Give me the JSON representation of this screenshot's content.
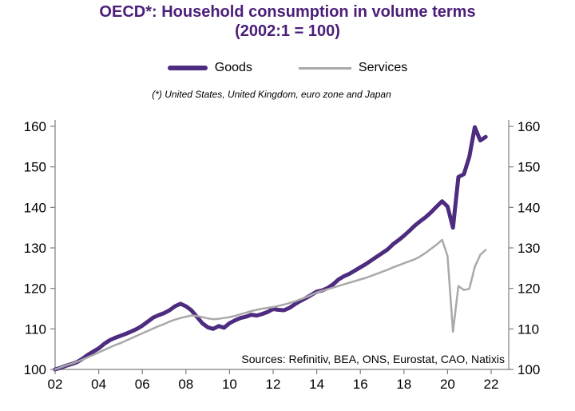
{
  "colors": {
    "title": "#4B1E78",
    "axis": "#7F7F7F",
    "tick_text": "#000000"
  },
  "chart_data": {
    "type": "line",
    "title": "OECD*: Household consumption in volume terms",
    "subtitle": "(2002:1 = 100)",
    "footnote": "(*) United States, United Kingdom, euro zone and Japan",
    "source_note": "Sources: Refinitiv, BEA, ONS, Eurostat, CAO, Natixis",
    "x_unit": "quarterly",
    "x_start_year": 2002,
    "points_per_year": 4,
    "x_tick_labels": [
      "02",
      "04",
      "06",
      "08",
      "10",
      "12",
      "14",
      "16",
      "18",
      "20",
      "22"
    ],
    "y_ticks": [
      100,
      110,
      120,
      130,
      140,
      150,
      160
    ],
    "ylim": [
      100,
      160
    ],
    "grid": false,
    "legend_position": "top",
    "series": [
      {
        "name": "Goods",
        "color": "#4D2B7E",
        "line_width": 5,
        "values": [
          100,
          100.4,
          100.9,
          101.3,
          101.8,
          102.6,
          103.6,
          104.4,
          105.2,
          106.3,
          107.2,
          107.8,
          108.3,
          108.8,
          109.4,
          110.0,
          110.8,
          111.8,
          112.8,
          113.4,
          113.9,
          114.6,
          115.6,
          116.2,
          115.6,
          114.6,
          113.0,
          111.4,
          110.4,
          110.0,
          110.7,
          110.3,
          111.4,
          112.1,
          112.7,
          113.0,
          113.5,
          113.3,
          113.7,
          114.2,
          114.9,
          114.7,
          114.6,
          115.2,
          116.1,
          116.9,
          117.6,
          118.4,
          119.2,
          119.5,
          120.1,
          121.0,
          122.2,
          123.0,
          123.6,
          124.4,
          125.2,
          126.0,
          126.9,
          127.8,
          128.7,
          129.6,
          130.9,
          131.9,
          133.0,
          134.2,
          135.5,
          136.6,
          137.6,
          138.8,
          140.2,
          141.5,
          140.2,
          135.0,
          147.5,
          148.2,
          152.5,
          159.8,
          156.5,
          157.4
        ]
      },
      {
        "name": "Services",
        "color": "#A9A9A9",
        "line_width": 2.5,
        "values": [
          100,
          100.5,
          101.0,
          101.4,
          101.9,
          102.4,
          103.0,
          103.6,
          104.2,
          104.8,
          105.4,
          106.0,
          106.5,
          107.1,
          107.7,
          108.3,
          108.9,
          109.5,
          110.1,
          110.7,
          111.2,
          111.8,
          112.3,
          112.7,
          113.0,
          113.3,
          113.2,
          112.9,
          112.6,
          112.4,
          112.5,
          112.7,
          112.9,
          113.2,
          113.6,
          114.0,
          114.4,
          114.7,
          115.0,
          115.2,
          115.4,
          115.7,
          116.0,
          116.4,
          116.8,
          117.3,
          117.8,
          118.4,
          119.0,
          119.4,
          119.8,
          120.2,
          120.6,
          121.0,
          121.4,
          121.8,
          122.2,
          122.6,
          123.1,
          123.6,
          124.1,
          124.6,
          125.2,
          125.7,
          126.2,
          126.7,
          127.2,
          127.9,
          128.8,
          129.8,
          130.8,
          132.0,
          128.0,
          109.3,
          120.6,
          119.6,
          119.9,
          125.3,
          128.3,
          129.5
        ]
      }
    ]
  }
}
